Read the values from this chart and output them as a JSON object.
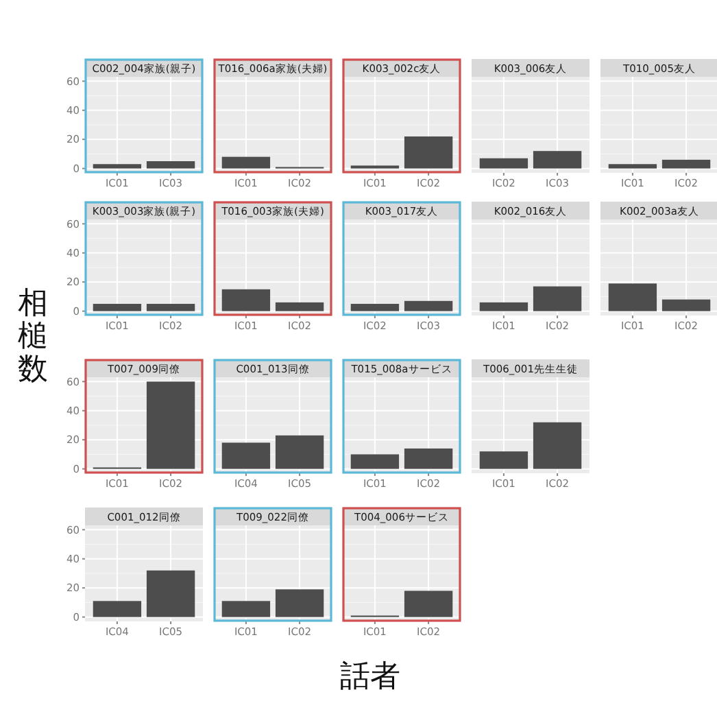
{
  "chart_data": [
    {
      "type": "bar",
      "title": "C002_004家族(親子)",
      "xlabel": "話者",
      "ylabel": "相槌数",
      "categories": [
        "IC01",
        "IC03"
      ],
      "values": [
        3,
        5
      ],
      "color": "#4d4d4d",
      "ylim": [
        -3,
        63
      ],
      "yticks": [
        0,
        20,
        40,
        60
      ],
      "grid": true
    },
    {
      "type": "bar",
      "title": "T016_006a家族(夫婦)",
      "categories": [
        "IC01",
        "IC02"
      ],
      "values": [
        8,
        1
      ],
      "color": "#4d4d4d",
      "ylim": [
        -3,
        63
      ],
      "yticks": [
        0,
        20,
        40,
        60
      ],
      "grid": true,
      "tick_labels": "x"
    },
    {
      "type": "bar",
      "title": "K003_002c友人",
      "categories": [
        "IC01",
        "IC02"
      ],
      "values": [
        2,
        22
      ],
      "color": "#4d4d4d",
      "ylim": [
        -3,
        63
      ],
      "yticks": [
        0,
        20,
        40,
        60
      ],
      "grid": true,
      "tick_labels": "x"
    },
    {
      "type": "bar",
      "title": "K003_006友人",
      "categories": [
        "IC02",
        "IC03"
      ],
      "values": [
        7,
        12
      ],
      "color": "#4d4d4d",
      "ylim": [
        -3,
        63
      ],
      "yticks": [
        0,
        20,
        40,
        60
      ],
      "grid": true,
      "tick_labels": "x"
    },
    {
      "type": "bar",
      "title": "T010_005友人",
      "categories": [
        "IC01",
        "IC02"
      ],
      "values": [
        3,
        6
      ],
      "color": "#4d4d4d",
      "ylim": [
        -3,
        63
      ],
      "yticks": [
        0,
        20,
        40,
        60
      ],
      "grid": true,
      "tick_labels": "x"
    },
    {
      "type": "bar",
      "title": "K003_003家族(親子)",
      "categories": [
        "IC01",
        "IC02"
      ],
      "values": [
        5,
        5
      ],
      "color": "#4d4d4d",
      "ylim": [
        -3,
        63
      ],
      "yticks": [
        0,
        20,
        40,
        60
      ],
      "grid": true
    },
    {
      "type": "bar",
      "title": "T016_003家族(夫婦)",
      "categories": [
        "IC01",
        "IC02"
      ],
      "values": [
        15,
        6
      ],
      "color": "#4d4d4d",
      "ylim": [
        -3,
        63
      ],
      "yticks": [
        0,
        20,
        40,
        60
      ],
      "grid": true,
      "tick_labels": "x"
    },
    {
      "type": "bar",
      "title": "K003_017友人",
      "categories": [
        "IC02",
        "IC03"
      ],
      "values": [
        5,
        7
      ],
      "color": "#4d4d4d",
      "ylim": [
        -3,
        63
      ],
      "yticks": [
        0,
        20,
        40,
        60
      ],
      "grid": true,
      "tick_labels": "x"
    },
    {
      "type": "bar",
      "title": "K002_016友人",
      "categories": [
        "IC01",
        "IC02"
      ],
      "values": [
        6,
        17
      ],
      "color": "#4d4d4d",
      "ylim": [
        -3,
        63
      ],
      "yticks": [
        0,
        20,
        40,
        60
      ],
      "grid": true,
      "tick_labels": "x"
    },
    {
      "type": "bar",
      "title": "K002_003a友人",
      "categories": [
        "IC01",
        "IC02"
      ],
      "values": [
        19,
        8
      ],
      "color": "#4d4d4d",
      "ylim": [
        -3,
        63
      ],
      "yticks": [
        0,
        20,
        40,
        60
      ],
      "grid": true,
      "tick_labels": "x"
    },
    {
      "type": "bar",
      "title": "T007_009同僚",
      "categories": [
        "IC01",
        "IC02"
      ],
      "values": [
        1,
        60
      ],
      "color": "#4d4d4d",
      "ylim": [
        -3,
        63
      ],
      "yticks": [
        0,
        20,
        40,
        60
      ],
      "grid": true
    },
    {
      "type": "bar",
      "title": "C001_013同僚",
      "categories": [
        "IC04",
        "IC05"
      ],
      "values": [
        18,
        23
      ],
      "color": "#4d4d4d",
      "ylim": [
        -3,
        63
      ],
      "yticks": [
        0,
        20,
        40,
        60
      ],
      "grid": true,
      "tick_labels": "x"
    },
    {
      "type": "bar",
      "title": "T015_008aサービス",
      "categories": [
        "IC01",
        "IC02"
      ],
      "values": [
        10,
        14
      ],
      "color": "#4d4d4d",
      "ylim": [
        -3,
        63
      ],
      "yticks": [
        0,
        20,
        40,
        60
      ],
      "grid": true,
      "tick_labels": "x"
    },
    {
      "type": "bar",
      "title": "T006_001先生生徒",
      "categories": [
        "IC01",
        "IC02"
      ],
      "values": [
        12,
        32
      ],
      "color": "#4d4d4d",
      "ylim": [
        -3,
        63
      ],
      "yticks": [
        0,
        20,
        40,
        60
      ],
      "grid": true,
      "tick_labels": "x"
    },
    {
      "type": "bar",
      "title": "C001_012同僚",
      "categories": [
        "IC04",
        "IC05"
      ],
      "values": [
        11,
        32
      ],
      "color": "#4d4d4d",
      "ylim": [
        -3,
        63
      ],
      "yticks": [
        0,
        20,
        40,
        60
      ],
      "grid": true
    },
    {
      "type": "bar",
      "title": "T009_022同僚",
      "categories": [
        "IC01",
        "IC02"
      ],
      "values": [
        11,
        19
      ],
      "color": "#4d4d4d",
      "ylim": [
        -3,
        63
      ],
      "yticks": [
        0,
        20,
        40,
        60
      ],
      "grid": true,
      "tick_labels": "x"
    },
    {
      "type": "bar",
      "title": "T004_006サービス",
      "categories": [
        "IC01",
        "IC02"
      ],
      "values": [
        1,
        18
      ],
      "color": "#4d4d4d",
      "ylim": [
        -3,
        63
      ],
      "yticks": [
        0,
        20,
        40,
        60
      ],
      "grid": true,
      "tick_labels": "x"
    }
  ]
}
